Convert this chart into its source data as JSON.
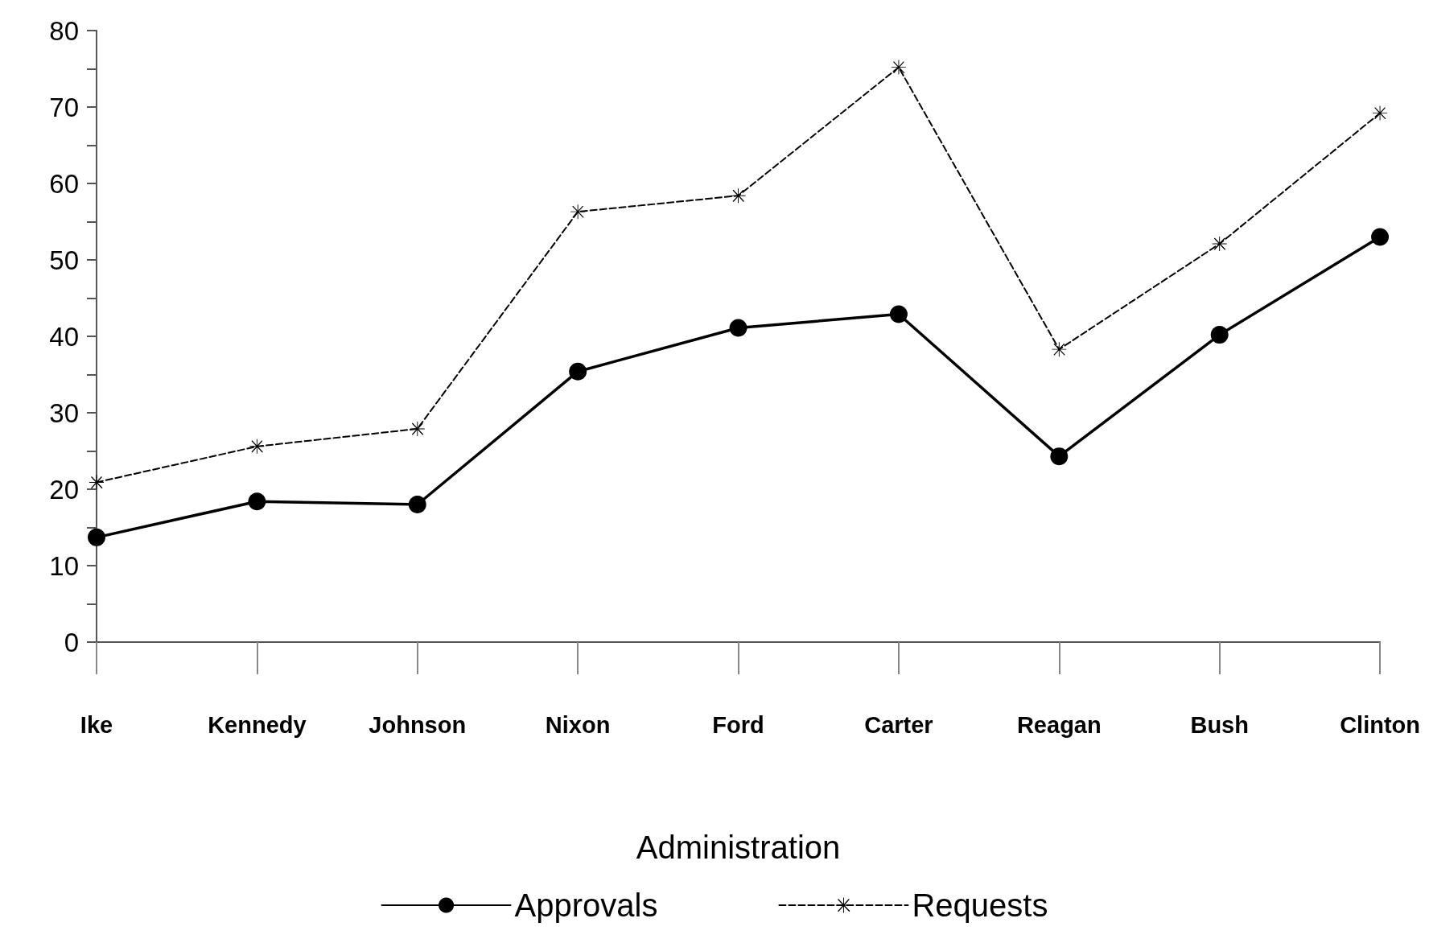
{
  "chart_data": {
    "type": "line",
    "xlabel": "Administration",
    "categories": [
      "Ike",
      "Kennedy",
      "Johnson",
      "Nixon",
      "Ford",
      "Carter",
      "Reagan",
      "Bush",
      "Clinton"
    ],
    "series": [
      {
        "name": "Approvals",
        "color": "#000000",
        "marker": "circle",
        "line_style": "solid",
        "values": [
          13.7,
          18.4,
          18,
          35.4,
          41.1,
          42.9,
          24.3,
          40.2,
          53
        ]
      },
      {
        "name": "Requests",
        "color": "#000000",
        "marker": "cross",
        "line_style": "dashed",
        "values": [
          20.9,
          25.6,
          27.9,
          56.3,
          58.4,
          75.2,
          38.3,
          52.1,
          69.2
        ]
      }
    ],
    "ylim": [
      0,
      80
    ],
    "yticks": [
      0,
      {
        "value": 5,
        "label": null
      },
      10,
      {
        "value": 15,
        "label": null
      },
      20,
      {
        "value": 25,
        "label": null
      },
      30,
      {
        "value": 35,
        "label": null
      },
      40,
      {
        "value": 45,
        "label": null
      },
      50,
      {
        "value": 55,
        "label": null
      },
      60,
      {
        "value": 65,
        "label": null
      },
      70,
      {
        "value": 75,
        "label": null
      },
      80
    ],
    "grid": false,
    "legend": "bottom"
  }
}
